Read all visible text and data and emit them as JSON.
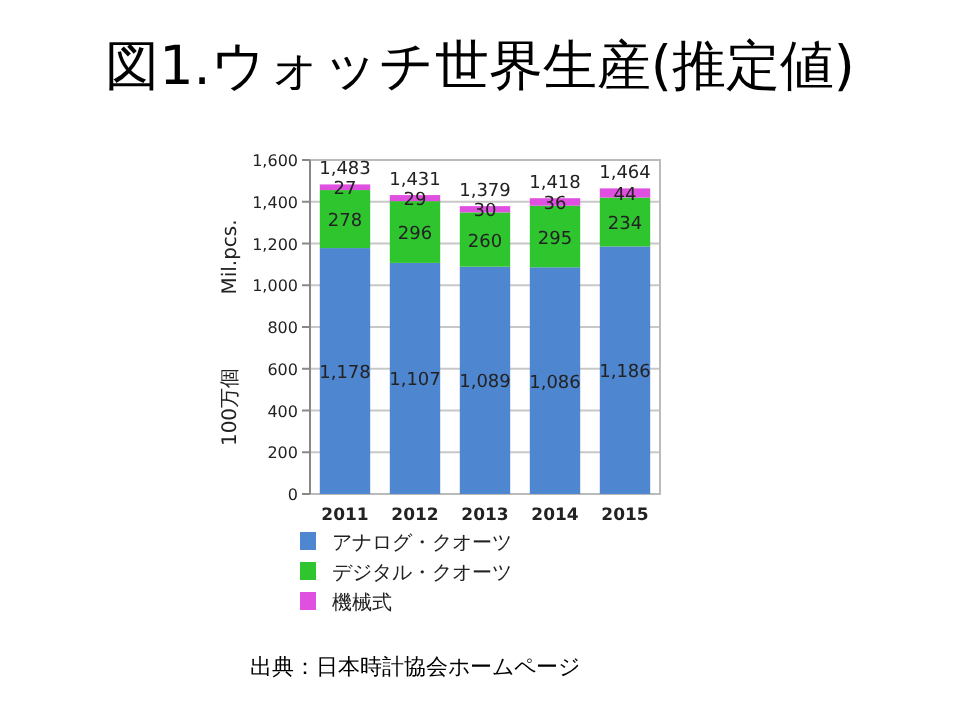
{
  "chart_data": {
    "type": "bar",
    "title": "図1.ウォッチ世界生産(推定値)",
    "ylabel": "100万個\nMil.pcs.",
    "categories": [
      "2011",
      "2012",
      "2013",
      "2014",
      "2015"
    ],
    "stacked": true,
    "series": [
      {
        "name": "アナログ・クオーツ",
        "color": "#4f86d0",
        "values": [
          1178,
          1107,
          1089,
          1086,
          1186
        ],
        "value_labels": [
          "1,178",
          "1,107",
          "1,089",
          "1,086",
          "1,186"
        ]
      },
      {
        "name": "デジタル・クオーツ",
        "color": "#2ec52e",
        "values": [
          278,
          296,
          260,
          295,
          234
        ],
        "value_labels": [
          "278",
          "296",
          "260",
          "295",
          "234"
        ]
      },
      {
        "name": "機械式",
        "color": "#e050e0",
        "values": [
          27,
          29,
          30,
          36,
          44
        ],
        "value_labels": [
          "27",
          "29",
          "30",
          "36",
          "44"
        ]
      }
    ],
    "ylim": [
      0,
      1600
    ],
    "yticks": [
      {
        "value": 0,
        "label": "0"
      },
      {
        "value": 200,
        "label": "200"
      },
      {
        "value": 400,
        "label": "400"
      },
      {
        "value": 600,
        "label": "600"
      },
      {
        "value": 800,
        "label": "800"
      },
      {
        "value": 1000,
        "label": "1,000"
      },
      {
        "value": 1200,
        "label": "1,200"
      },
      {
        "value": 1400,
        "label": "1,400"
      },
      {
        "value": 1600,
        "label": "1,600"
      }
    ],
    "grid": "y",
    "legend": "bottom",
    "totals": [
      "1,483",
      "1,431",
      "1,379",
      "1,418",
      "1,464"
    ],
    "annotations": [
      "出典：日本時計協会ホームページ"
    ]
  }
}
